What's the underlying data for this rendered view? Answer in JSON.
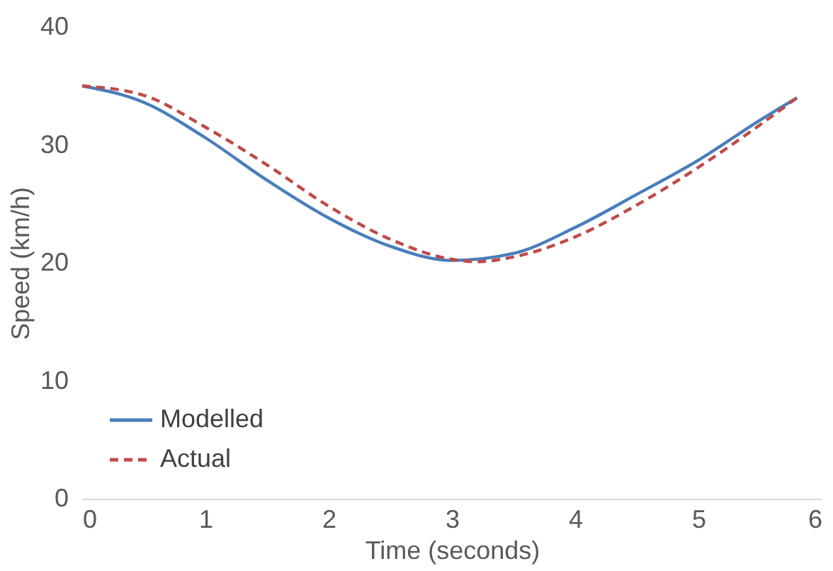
{
  "chart_data": {
    "type": "line",
    "xlabel": "Time (seconds)",
    "ylabel": "Speed (km/h)",
    "xlim": [
      0,
      6
    ],
    "xticks": [
      0,
      1,
      2,
      3,
      4,
      5,
      6
    ],
    "ylim": [
      0,
      40
    ],
    "yticks": [
      0,
      10,
      20,
      30,
      40
    ],
    "grid": false,
    "legend": "bottom left",
    "marker": "none",
    "series": [
      {
        "name": "Modelled",
        "color": "#4a7ebb",
        "line_style": "solid",
        "x": [
          0,
          0.5,
          1,
          1.5,
          2,
          2.5,
          3,
          3.5,
          4,
          4.5,
          5,
          5.5,
          5.8
        ],
        "values": [
          35,
          33.6,
          30.6,
          27,
          23.8,
          21.4,
          20.2,
          20.8,
          23,
          25.8,
          28.7,
          32.1,
          34
        ]
      },
      {
        "name": "Actual",
        "color": "#be4b48",
        "line_style": "dashed",
        "x": [
          0,
          0.5,
          1,
          1.5,
          2,
          2.5,
          3,
          3.2,
          3.5,
          4,
          4.5,
          5,
          5.5,
          5.8
        ],
        "values": [
          35,
          34.2,
          31.5,
          28.3,
          24.8,
          22,
          20.3,
          20.1,
          20.5,
          22.2,
          24.9,
          28.1,
          31.7,
          34
        ]
      }
    ]
  }
}
